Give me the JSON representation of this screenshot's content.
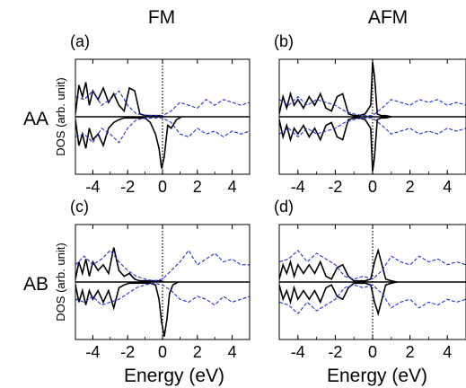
{
  "figure": {
    "column_titles": [
      "FM",
      "AFM"
    ],
    "row_labels": [
      "AA",
      "AB"
    ],
    "ylabel": "DOS (arb. unit)",
    "xlabel": "Energy (eV)",
    "colors": {
      "total": "#000000",
      "dashed": "#1f2fd6",
      "axis": "#000000"
    }
  },
  "chart_data": [
    {
      "panel": "(a)",
      "type": "line",
      "xlim": [
        -5,
        5
      ],
      "ylim": [
        -1,
        1
      ],
      "xticks": [
        "-4",
        "-2",
        "0",
        "2",
        "4"
      ],
      "fermi_level": 0,
      "series": [
        {
          "style": "solid",
          "x": [
            -5,
            -4.8,
            -4.6,
            -4.4,
            -4.2,
            -4,
            -3.7,
            -3.4,
            -3.1,
            -2.8,
            -2.5,
            -2.2,
            -1.9,
            -1.6,
            -1.3,
            -1,
            -0.7,
            -0.4,
            -0.1,
            0.1
          ],
          "y": [
            0.05,
            0.55,
            0.35,
            0.6,
            0.2,
            0.45,
            0.3,
            0.5,
            0.25,
            0.4,
            0.2,
            0.1,
            0.5,
            0.45,
            0.05,
            0.02,
            0.02,
            0.02,
            0.02,
            0
          ]
        },
        {
          "style": "solid",
          "x": [
            -5,
            -4.8,
            -4.6,
            -4.4,
            -4.2,
            -4,
            -3.7,
            -3.4,
            -3.1,
            -2.8,
            -2.5,
            -2.2,
            -1.9,
            -1.6,
            -1.3,
            -1,
            -0.7,
            -0.4,
            -0.2,
            -0.05,
            0.1,
            0.3,
            0.5,
            0.8,
            1.1
          ],
          "y": [
            -0.05,
            -0.5,
            -0.3,
            -0.55,
            -0.2,
            -0.4,
            -0.3,
            -0.5,
            -0.2,
            -0.1,
            -0.05,
            -0.02,
            -0.02,
            -0.02,
            -0.02,
            -0.02,
            -0.1,
            -0.3,
            -0.55,
            -0.9,
            -0.7,
            -0.15,
            -0.2,
            -0.05,
            0
          ]
        },
        {
          "style": "dashed",
          "x": [
            -5,
            -4.5,
            -4,
            -3.5,
            -3,
            -2.5,
            -2,
            -1.5,
            -1,
            -0.5,
            0,
            0.5,
            1,
            1.5,
            2,
            2.5,
            3,
            3.5,
            4,
            4.5,
            5
          ],
          "y": [
            0.35,
            0.3,
            0.45,
            0.2,
            0.3,
            0.45,
            0.2,
            0.05,
            0.03,
            0.02,
            0.02,
            0.1,
            0.25,
            0.2,
            0.15,
            0.3,
            0.2,
            0.3,
            0.25,
            0.2,
            0.25
          ]
        },
        {
          "style": "dashed",
          "x": [
            -5,
            -4.5,
            -4,
            -3.5,
            -3,
            -2.5,
            -2,
            -1.5,
            -1,
            -0.5,
            0,
            0.5,
            1,
            1.5,
            2,
            2.5,
            3,
            3.5,
            4,
            4.5,
            5
          ],
          "y": [
            -0.35,
            -0.3,
            -0.45,
            -0.2,
            -0.3,
            -0.45,
            -0.2,
            -0.05,
            -0.03,
            -0.02,
            -0.02,
            -0.1,
            -0.3,
            -0.35,
            -0.2,
            -0.3,
            -0.25,
            -0.35,
            -0.25,
            -0.3,
            -0.25
          ]
        }
      ]
    },
    {
      "panel": "(b)",
      "type": "line",
      "xlim": [
        -5,
        5
      ],
      "ylim": [
        -1,
        1
      ],
      "xticks": [
        "-4",
        "-2",
        "0",
        "2",
        "4"
      ],
      "fermi_level": 0,
      "series": [
        {
          "style": "solid",
          "x": [
            -5,
            -4.8,
            -4.6,
            -4.4,
            -4.2,
            -4,
            -3.7,
            -3.4,
            -3.1,
            -2.8,
            -2.5,
            -2.2,
            -1.9,
            -1.6,
            -1.3,
            -1,
            -0.7,
            -0.4,
            -0.1,
            0,
            0.1,
            0.25,
            0.45,
            0.7,
            1
          ],
          "y": [
            0.05,
            0.35,
            0.15,
            0.4,
            0.2,
            0.3,
            0.15,
            0.35,
            0.2,
            0.4,
            0.15,
            0.1,
            0.35,
            0.4,
            0.05,
            0.02,
            0.02,
            0.05,
            0.2,
            0.95,
            0.7,
            0.05,
            0.02,
            0.02,
            0
          ]
        },
        {
          "style": "solid",
          "x": [
            -5,
            -4.8,
            -4.6,
            -4.4,
            -4.2,
            -4,
            -3.7,
            -3.4,
            -3.1,
            -2.8,
            -2.5,
            -2.2,
            -1.9,
            -1.6,
            -1.3,
            -1,
            -0.7,
            -0.4,
            -0.1,
            0,
            0.1,
            0.25,
            0.45,
            0.7,
            1
          ],
          "y": [
            -0.05,
            -0.35,
            -0.15,
            -0.4,
            -0.2,
            -0.3,
            -0.15,
            -0.35,
            -0.2,
            -0.4,
            -0.15,
            -0.1,
            -0.35,
            -0.4,
            -0.05,
            -0.02,
            -0.02,
            -0.05,
            -0.2,
            -0.95,
            -0.7,
            -0.05,
            -0.02,
            -0.02,
            0
          ]
        },
        {
          "style": "dashed",
          "x": [
            -5,
            -4.5,
            -4,
            -3.5,
            -3,
            -2.5,
            -2,
            -1.5,
            -1,
            -0.5,
            0,
            0.5,
            1,
            1.5,
            2,
            2.5,
            3,
            3.5,
            4,
            4.5,
            5
          ],
          "y": [
            0.3,
            0.2,
            0.35,
            0.2,
            0.3,
            0.25,
            0.2,
            0.1,
            0.05,
            0.02,
            0.02,
            0.15,
            0.3,
            0.25,
            0.2,
            0.3,
            0.25,
            0.3,
            0.2,
            0.25,
            0.2
          ]
        },
        {
          "style": "dashed",
          "x": [
            -5,
            -4.5,
            -4,
            -3.5,
            -3,
            -2.5,
            -2,
            -1.5,
            -1,
            -0.5,
            0,
            0.5,
            1,
            1.5,
            2,
            2.5,
            3,
            3.5,
            4,
            4.5,
            5
          ],
          "y": [
            -0.3,
            -0.2,
            -0.35,
            -0.2,
            -0.3,
            -0.25,
            -0.2,
            -0.1,
            -0.05,
            -0.02,
            -0.02,
            -0.15,
            -0.3,
            -0.25,
            -0.2,
            -0.3,
            -0.25,
            -0.3,
            -0.2,
            -0.25,
            -0.2
          ]
        }
      ]
    },
    {
      "panel": "(c)",
      "type": "line",
      "xlim": [
        -5,
        5
      ],
      "ylim": [
        -1,
        1
      ],
      "xticks": [
        "-4",
        "-2",
        "0",
        "2",
        "4"
      ],
      "fermi_level": 0,
      "series": [
        {
          "style": "solid",
          "x": [
            -5,
            -4.8,
            -4.6,
            -4.4,
            -4.2,
            -4,
            -3.7,
            -3.4,
            -3.1,
            -2.8,
            -2.5,
            -2.2,
            -1.9,
            -1.6,
            -1.3,
            -1,
            -0.7,
            -0.4,
            -0.1,
            0.1
          ],
          "y": [
            0.05,
            0.35,
            0.15,
            0.4,
            0.1,
            0.35,
            0.2,
            0.3,
            0.15,
            0.6,
            0.2,
            0.1,
            0.15,
            0.05,
            0.02,
            0.02,
            0.02,
            0.02,
            0.02,
            0
          ]
        },
        {
          "style": "solid",
          "x": [
            -5,
            -4.8,
            -4.6,
            -4.4,
            -4.2,
            -4,
            -3.7,
            -3.4,
            -3.1,
            -2.8,
            -2.5,
            -2.2,
            -1.9,
            -1.6,
            -1.3,
            -1,
            -0.7,
            -0.4,
            -0.2,
            -0.05,
            0.1,
            0.25,
            0.4,
            0.6,
            0.9
          ],
          "y": [
            -0.05,
            -0.35,
            -0.15,
            -0.4,
            -0.15,
            -0.3,
            -0.15,
            -0.35,
            -0.15,
            -0.45,
            -0.1,
            -0.05,
            -0.02,
            -0.02,
            -0.02,
            -0.02,
            -0.02,
            -0.05,
            -0.3,
            -0.7,
            -0.95,
            -0.65,
            -0.2,
            -0.05,
            0
          ]
        },
        {
          "style": "dashed",
          "x": [
            -5,
            -4.5,
            -4,
            -3.5,
            -3,
            -2.5,
            -2,
            -1.5,
            -1,
            -0.5,
            0,
            0.5,
            1,
            1.5,
            2,
            2.5,
            3,
            3.5,
            4,
            4.5,
            5
          ],
          "y": [
            0.3,
            0.45,
            0.3,
            0.4,
            0.55,
            0.35,
            0.2,
            0.1,
            0.05,
            0.02,
            0.05,
            0.2,
            0.35,
            0.55,
            0.3,
            0.4,
            0.5,
            0.35,
            0.4,
            0.3,
            0.3
          ]
        },
        {
          "style": "dashed",
          "x": [
            -5,
            -4.5,
            -4,
            -3.5,
            -3,
            -2.5,
            -2,
            -1.5,
            -1,
            -0.5,
            0,
            0.5,
            1,
            1.5,
            2,
            2.5,
            3,
            3.5,
            4,
            4.5,
            5
          ],
          "y": [
            -0.3,
            -0.35,
            -0.25,
            -0.4,
            -0.35,
            -0.3,
            -0.2,
            -0.1,
            -0.05,
            -0.02,
            -0.05,
            -0.15,
            -0.3,
            -0.35,
            -0.25,
            -0.3,
            -0.4,
            -0.25,
            -0.35,
            -0.3,
            -0.25
          ]
        }
      ]
    },
    {
      "panel": "(d)",
      "type": "line",
      "xlim": [
        -5,
        5
      ],
      "ylim": [
        -1,
        1
      ],
      "xticks": [
        "-4",
        "-2",
        "0",
        "2",
        "4"
      ],
      "fermi_level": 0,
      "series": [
        {
          "style": "solid",
          "x": [
            -5,
            -4.8,
            -4.6,
            -4.4,
            -4.2,
            -4,
            -3.7,
            -3.4,
            -3.1,
            -2.8,
            -2.5,
            -2.2,
            -1.9,
            -1.6,
            -1.3,
            -1,
            -0.7,
            -0.4,
            -0.1,
            0.1,
            0.3,
            0.5,
            0.7,
            1,
            1.3
          ],
          "y": [
            0.05,
            0.3,
            0.15,
            0.35,
            0.1,
            0.3,
            0.15,
            0.3,
            0.15,
            0.35,
            0.1,
            0.05,
            0.25,
            0.3,
            0.1,
            0.02,
            0.02,
            0.02,
            0.05,
            0.35,
            0.55,
            0.3,
            0.05,
            0.02,
            0
          ]
        },
        {
          "style": "solid",
          "x": [
            -5,
            -4.8,
            -4.6,
            -4.4,
            -4.2,
            -4,
            -3.7,
            -3.4,
            -3.1,
            -2.8,
            -2.5,
            -2.2,
            -1.9,
            -1.6,
            -1.3,
            -1,
            -0.7,
            -0.4,
            -0.1,
            0.1,
            0.3,
            0.5,
            0.7,
            1,
            1.3
          ],
          "y": [
            -0.05,
            -0.3,
            -0.15,
            -0.35,
            -0.1,
            -0.3,
            -0.15,
            -0.3,
            -0.15,
            -0.35,
            -0.1,
            -0.05,
            -0.25,
            -0.3,
            -0.1,
            -0.02,
            -0.02,
            -0.02,
            -0.05,
            -0.35,
            -0.55,
            -0.3,
            -0.05,
            -0.02,
            0
          ]
        },
        {
          "style": "dashed",
          "x": [
            -5,
            -4.5,
            -4,
            -3.5,
            -3,
            -2.5,
            -2,
            -1.5,
            -1,
            -0.5,
            0,
            0.5,
            1,
            1.5,
            2,
            2.5,
            3,
            3.5,
            4,
            4.5,
            5
          ],
          "y": [
            0.35,
            0.4,
            0.55,
            0.35,
            0.5,
            0.4,
            0.3,
            0.1,
            0.05,
            0.1,
            0.05,
            0.2,
            0.45,
            0.35,
            0.3,
            0.45,
            0.35,
            0.4,
            0.3,
            0.35,
            0.3
          ]
        },
        {
          "style": "dashed",
          "x": [
            -5,
            -4.5,
            -4,
            -3.5,
            -3,
            -2.5,
            -2,
            -1.5,
            -1,
            -0.5,
            0,
            0.5,
            1,
            1.5,
            2,
            2.5,
            3,
            3.5,
            4,
            4.5,
            5
          ],
          "y": [
            -0.35,
            -0.4,
            -0.55,
            -0.35,
            -0.5,
            -0.4,
            -0.3,
            -0.1,
            -0.05,
            -0.1,
            -0.05,
            -0.2,
            -0.45,
            -0.35,
            -0.3,
            -0.45,
            -0.35,
            -0.4,
            -0.3,
            -0.35,
            -0.3
          ]
        }
      ]
    }
  ]
}
